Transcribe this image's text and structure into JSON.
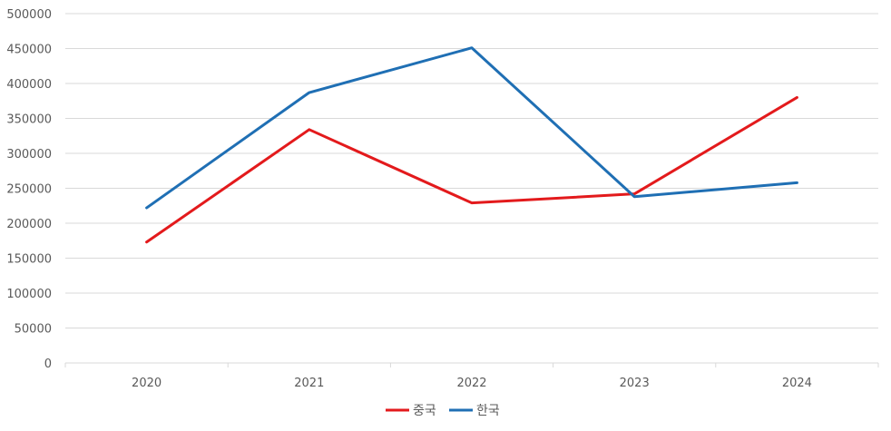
{
  "chart_data": {
    "type": "line",
    "title": "",
    "xlabel": "",
    "ylabel": "",
    "categories": [
      "2020",
      "2021",
      "2022",
      "2023",
      "2024"
    ],
    "ylim": [
      0,
      500000
    ],
    "yticks": [
      0,
      50000,
      100000,
      150000,
      200000,
      250000,
      300000,
      350000,
      400000,
      450000,
      500000
    ],
    "grid": true,
    "legend_position": "bottom",
    "series": [
      {
        "name": "중국",
        "color": "#e31a1c",
        "values": [
          173000,
          334000,
          229000,
          242000,
          380000
        ]
      },
      {
        "name": "한국",
        "color": "#1f6fb4",
        "values": [
          222000,
          387000,
          451000,
          238000,
          258000
        ]
      }
    ]
  }
}
